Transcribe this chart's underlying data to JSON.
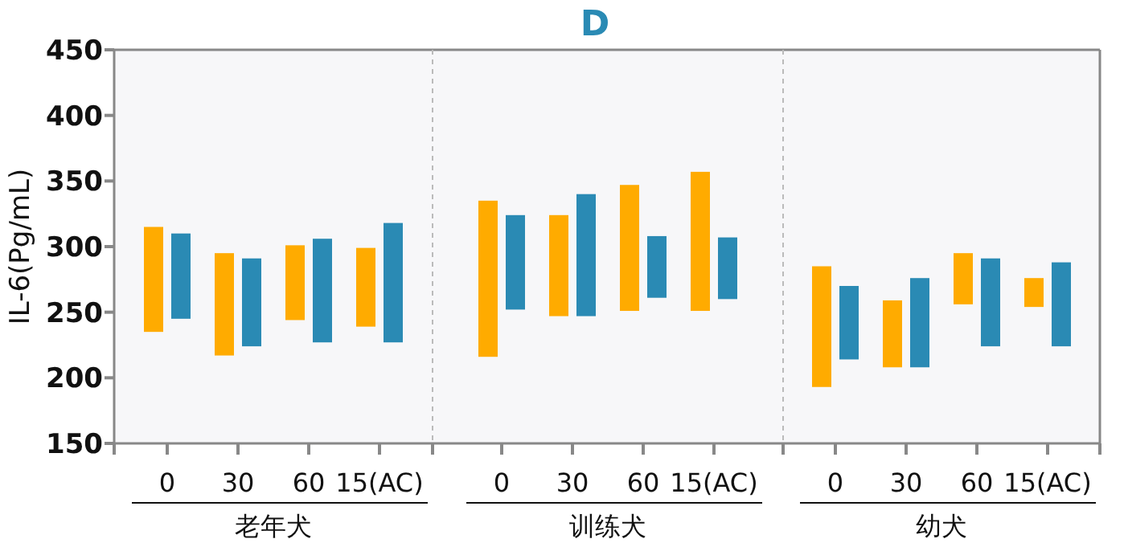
{
  "chart_data": [
    {
      "type": "bar",
      "ylabel": "IL-6(Pg/mL)",
      "xlabel": "老年犬",
      "categories": [
        "0",
        "30",
        "60",
        "15(AC)"
      ],
      "ylim": [
        150,
        450
      ],
      "yticks": [
        150,
        200,
        250,
        300,
        350,
        400,
        450
      ],
      "series": [
        {
          "color": "#ffab00",
          "base": [
            235,
            217,
            244,
            239
          ],
          "values": [
            80,
            78,
            57,
            60
          ]
        },
        {
          "color": "#2a8ab4",
          "base": [
            245,
            224,
            227,
            227
          ],
          "values": [
            65,
            67,
            79,
            91
          ]
        }
      ]
    },
    {
      "type": "bar",
      "title": "D",
      "xlabel": "训练犬",
      "categories": [
        "0",
        "30",
        "60",
        "15(AC)"
      ],
      "ylim": [
        150,
        450
      ],
      "tick_labels": "x",
      "series": [
        {
          "color": "#ffab00",
          "base": [
            216,
            247,
            251,
            251
          ],
          "values": [
            119,
            77,
            96,
            106
          ]
        },
        {
          "color": "#2a8ab4",
          "base": [
            252,
            247,
            261,
            260
          ],
          "values": [
            72,
            93,
            47,
            47
          ]
        }
      ]
    },
    {
      "type": "bar",
      "xlabel": "幼犬",
      "categories": [
        "0",
        "30",
        "60",
        "15(AC)"
      ],
      "ylim": [
        150,
        450
      ],
      "tick_labels": "x",
      "series": [
        {
          "color": "#ffab00",
          "base": [
            193,
            208,
            256,
            254
          ],
          "values": [
            92,
            51,
            39,
            22
          ]
        },
        {
          "color": "#2a8ab4",
          "base": [
            214,
            208,
            224,
            224
          ],
          "values": [
            56,
            68,
            67,
            64
          ]
        }
      ]
    }
  ]
}
